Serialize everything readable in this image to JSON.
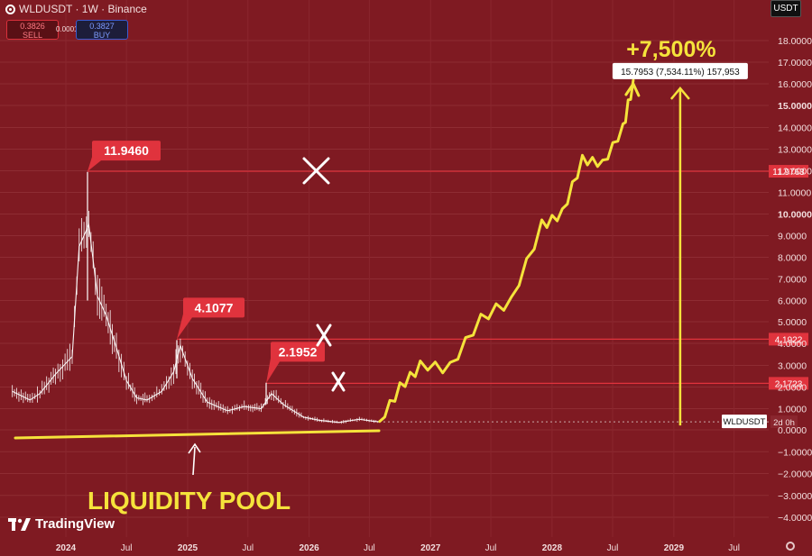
{
  "header": {
    "symbol_line": "WLDUSDT · 1W · Binance",
    "sell_price": "0.3826",
    "sell_label": "SELL",
    "spread": "0.0001",
    "buy_price": "0.3827",
    "buy_label": "BUY",
    "currency_button": "USDT"
  },
  "chart_data": {
    "type": "line",
    "symbol": "WLDUSDT",
    "interval": "1W",
    "exchange": "Binance",
    "y_scale": "log",
    "ylim": [
      -4.5,
      18.8
    ],
    "xlim": [
      "2023-07-01",
      "2029-12-31"
    ],
    "price_series": {
      "x": [
        "2023-07-24",
        "2023-09-15",
        "2023-10-15",
        "2023-12-01",
        "2024-01-20",
        "2024-02-10",
        "2024-03-10",
        "2024-04-05",
        "2024-05-01",
        "2024-06-01",
        "2024-07-01",
        "2024-08-01",
        "2024-09-01",
        "2024-10-15",
        "2024-11-20",
        "2024-12-10",
        "2025-01-15",
        "2025-03-01",
        "2025-05-01",
        "2025-06-20",
        "2025-08-10",
        "2025-09-10",
        "2025-10-15",
        "2025-12-15",
        "2026-02-01",
        "2026-04-01",
        "2026-06-01",
        "2026-07-15",
        "2026-08-01"
      ],
      "y": [
        1.8,
        1.4,
        1.7,
        2.6,
        3.4,
        8.5,
        9.5,
        6.2,
        5.3,
        3.8,
        2.3,
        1.5,
        1.4,
        1.8,
        2.7,
        3.9,
        2.4,
        1.3,
        0.9,
        1.1,
        1.0,
        1.7,
        1.2,
        0.6,
        0.45,
        0.35,
        0.5,
        0.4,
        0.38
      ]
    },
    "resistance_levels": [
      {
        "label": "11.9460",
        "axis_label": "11.9763",
        "value": 11.9763,
        "status": "broken-x"
      },
      {
        "label": "4.1077",
        "axis_label": "4.1922",
        "value": 4.1922,
        "status": "broken-x"
      },
      {
        "label": "2.1952",
        "axis_label": "2.1723",
        "value": 2.1723,
        "status": "broken-x"
      }
    ],
    "projection": {
      "x": [
        "2026-08-01",
        "2026-10-01",
        "2026-12-01",
        "2027-03-01",
        "2027-06-01",
        "2027-09-01",
        "2027-12-01",
        "2028-02-01",
        "2028-04-01",
        "2028-06-01",
        "2028-08-01",
        "2028-09-01"
      ],
      "y": [
        0.4,
        2.0,
        3.0,
        2.9,
        5.2,
        6.0,
        9.5,
        10.0,
        12.5,
        12.3,
        14.0,
        16.0
      ]
    },
    "measure": {
      "from": 0.21,
      "to": 15.7953,
      "date": "2029-01-20",
      "label": "15.7953 (7,534.11%) 157,953",
      "headline": "+7,500%"
    },
    "support_line_label": "LIQUIDITY POOL",
    "current_price_label": "WLDUSDT",
    "countdown": "2d 0h",
    "y_ticks": [
      "18.0000",
      "17.0000",
      "16.0000",
      "15.0000",
      "14.0000",
      "13.0000",
      "12.0000",
      "11.0000",
      "10.0000",
      "9.0000",
      "8.0000",
      "7.0000",
      "6.0000",
      "5.0000",
      "4.0000",
      "3.0000",
      "2.0000",
      "1.0000",
      "0.0000",
      "−1.0000",
      "−2.0000",
      "−3.0000",
      "−4.0000"
    ],
    "x_ticks": [
      {
        "label": "2024",
        "bold": true
      },
      {
        "label": "Jul",
        "bold": false
      },
      {
        "label": "2025",
        "bold": true
      },
      {
        "label": "Jul",
        "bold": false
      },
      {
        "label": "2026",
        "bold": true
      },
      {
        "label": "Jul",
        "bold": false
      },
      {
        "label": "2027",
        "bold": true
      },
      {
        "label": "Jul",
        "bold": false
      },
      {
        "label": "2028",
        "bold": true
      },
      {
        "label": "Jul",
        "bold": false
      },
      {
        "label": "2029",
        "bold": true
      },
      {
        "label": "Jul",
        "bold": false
      }
    ],
    "grid": true,
    "colors": {
      "background": "#7f1a22",
      "price": "#ffffff",
      "level": "#e0333d",
      "annotation": "#f5e33b",
      "cross": "#ffffff"
    }
  },
  "branding": {
    "name": "TradingView"
  }
}
